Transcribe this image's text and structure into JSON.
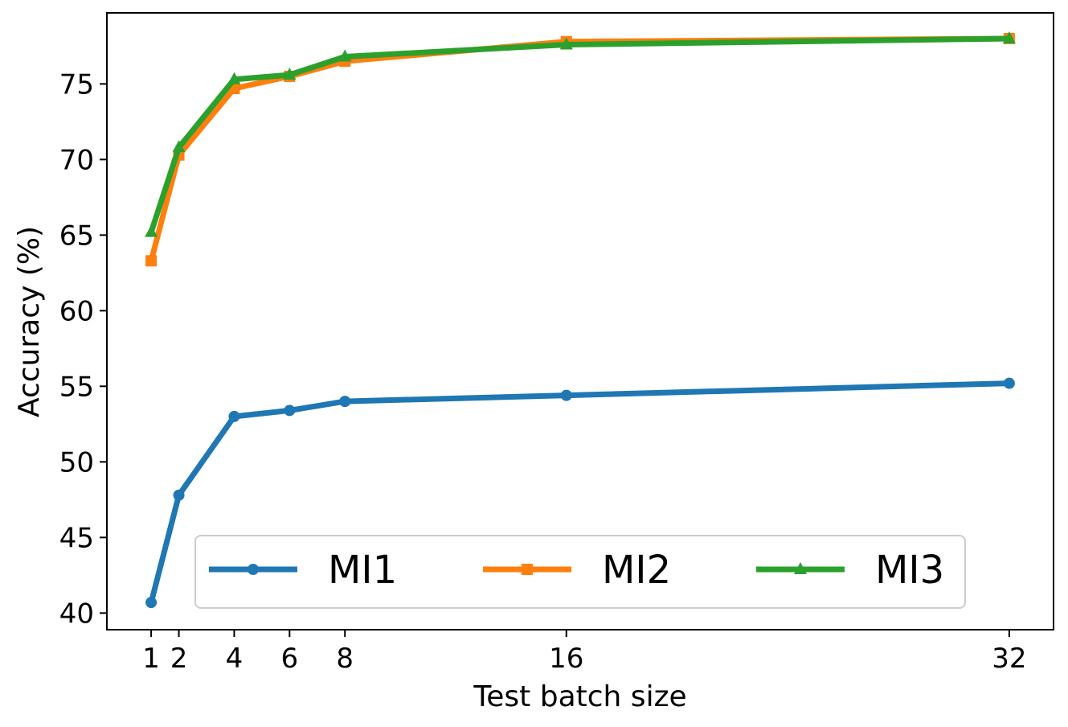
{
  "chart_data": {
    "type": "line",
    "title": "",
    "xlabel": "Test batch size",
    "ylabel": "Accuracy (%)",
    "x": [
      1,
      2,
      4,
      6,
      8,
      16,
      32
    ],
    "x_ticks": [
      1,
      2,
      4,
      6,
      8,
      16,
      32
    ],
    "y_ticks": [
      40,
      45,
      50,
      55,
      60,
      65,
      70,
      75
    ],
    "xlim": [
      -0.6,
      33.6
    ],
    "ylim": [
      38.9,
      79.7
    ],
    "grid": false,
    "legend": {
      "placement": "lower-center",
      "columns": 3
    },
    "series": [
      {
        "name": "MI1",
        "marker": "circle",
        "color": "#1f77b4",
        "values": [
          40.7,
          47.8,
          53.0,
          53.4,
          54.0,
          54.4,
          55.2
        ]
      },
      {
        "name": "MI2",
        "marker": "square",
        "color": "#ff7f0e",
        "values": [
          63.3,
          70.3,
          74.7,
          75.5,
          76.5,
          77.8,
          78.0
        ]
      },
      {
        "name": "MI3",
        "marker": "triangle",
        "color": "#2ca02c",
        "values": [
          65.2,
          70.8,
          75.3,
          75.6,
          76.8,
          77.6,
          78.0
        ]
      }
    ]
  }
}
